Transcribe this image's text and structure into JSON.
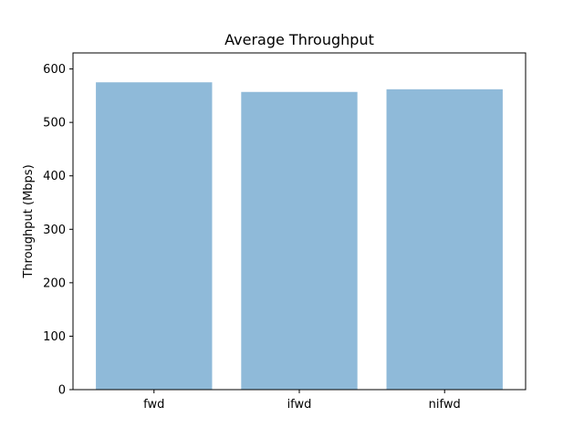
{
  "chart_data": {
    "type": "bar",
    "title": "Average Throughput",
    "xlabel": "",
    "ylabel": "Throughput (Mbps)",
    "categories": [
      "fwd",
      "ifwd",
      "nifwd"
    ],
    "values": [
      575,
      557,
      562
    ],
    "ylim": [
      0,
      630
    ],
    "yticks": [
      0,
      100,
      200,
      300,
      400,
      500,
      600
    ],
    "bar_color": "#8fbad9",
    "grid": false,
    "legend": "none"
  }
}
